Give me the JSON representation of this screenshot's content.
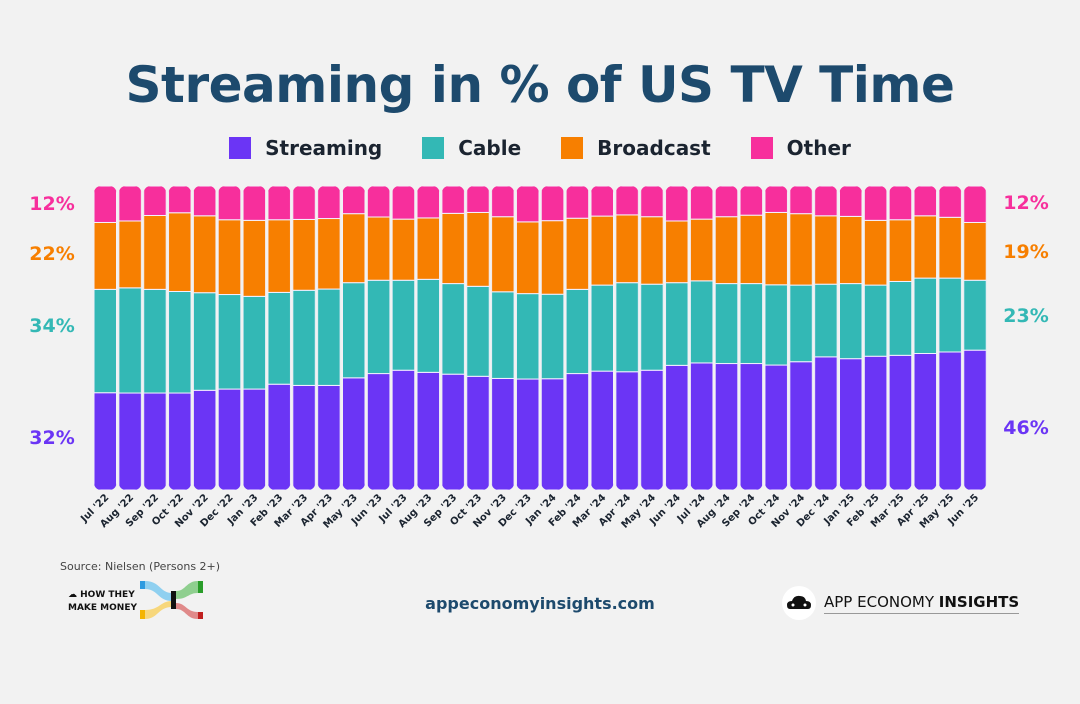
{
  "chart_data": {
    "type": "bar",
    "stacked": true,
    "title": "Streaming in % of US TV Time",
    "xlabel": "",
    "ylabel": "",
    "ylim": [
      0,
      100
    ],
    "legend_position": "top",
    "categories": [
      "Jul '22",
      "Aug '22",
      "Sep '22",
      "Oct '22",
      "Nov '22",
      "Dec '22",
      "Jan '23",
      "Feb '23",
      "Mar '23",
      "Apr '23",
      "May '23",
      "Jun '23",
      "Jul '23",
      "Aug '23",
      "Sep '23",
      "Oct '23",
      "Nov '23",
      "Dec '23",
      "Jan '24",
      "Feb '24",
      "Mar '24",
      "Apr '24",
      "May '24",
      "Jun '24",
      "Jul '24",
      "Aug '24",
      "Sep '24",
      "Oct '24",
      "Nov '24",
      "Dec '24",
      "Jan '25",
      "Feb '25",
      "Mar '25",
      "Apr '25",
      "May '25",
      "Jun '25"
    ],
    "series": [
      {
        "name": "Streaming",
        "color": "#6b35f5",
        "values": [
          32,
          31.9,
          31.9,
          31.9,
          32.8,
          33.2,
          33.2,
          34.8,
          34.4,
          34.4,
          36.9,
          38.3,
          39.4,
          38.7,
          38.1,
          37.4,
          36.7,
          36.5,
          36.6,
          38.3,
          39.1,
          38.9,
          39.4,
          41,
          41.8,
          41.6,
          41.6,
          41.1,
          42.2,
          43.8,
          43.2,
          44,
          44.3,
          44.9,
          45.4,
          46
        ]
      },
      {
        "name": "Cable",
        "color": "#33b8b5",
        "values": [
          34,
          34.6,
          34.1,
          33.4,
          32.1,
          31.1,
          30.5,
          30.2,
          31.3,
          31.7,
          31.3,
          30.7,
          29.6,
          30.6,
          29.8,
          29.6,
          28.5,
          28.1,
          27.8,
          27.7,
          28.3,
          29.3,
          28.3,
          27.2,
          27,
          26.3,
          26.3,
          26.4,
          25.2,
          23.9,
          24.7,
          23.4,
          24.3,
          24.8,
          24.3,
          23
        ]
      },
      {
        "name": "Broadcast",
        "color": "#f77f00",
        "values": [
          22,
          22,
          24.3,
          25.9,
          25.3,
          24.6,
          25,
          23.9,
          23.3,
          23.2,
          22.7,
          20.8,
          20.1,
          20.2,
          23.1,
          24.3,
          24.7,
          23.6,
          24.2,
          23.4,
          22.7,
          22.3,
          22.2,
          20.3,
          20.3,
          22,
          22.5,
          23.8,
          23.5,
          22.5,
          22.1,
          21.3,
          20.3,
          20.5,
          20,
          19
        ]
      },
      {
        "name": "Other",
        "color": "#f72f9c",
        "values": [
          12,
          11.5,
          9.7,
          8.8,
          9.8,
          11.1,
          11.3,
          11.1,
          11,
          10.7,
          9.1,
          10.2,
          10.9,
          10.5,
          9,
          8.7,
          10.1,
          11.8,
          11.4,
          10.6,
          9.9,
          9.5,
          10.1,
          11.5,
          10.9,
          10.1,
          9.6,
          8.7,
          9.1,
          9.8,
          10,
          11.3,
          11.1,
          9.8,
          10.3,
          12
        ]
      }
    ],
    "start_labels": {
      "Other": "12%",
      "Broadcast": "22%",
      "Cable": "34%",
      "Streaming": "32%"
    },
    "end_labels": {
      "Other": "12%",
      "Broadcast": "19%",
      "Cable": "23%",
      "Streaming": "46%"
    }
  },
  "legend": [
    "Streaming",
    "Cable",
    "Broadcast",
    "Other"
  ],
  "footer": {
    "source": "Source: Nielsen (Persons 2+)",
    "brand_left_line1": "HOW THEY",
    "brand_left_line2": "MAKE MONEY",
    "website": "appeconomyinsights.com",
    "brand_right_regular": "APP ECONOMY ",
    "brand_right_bold": "INSIGHTS"
  }
}
